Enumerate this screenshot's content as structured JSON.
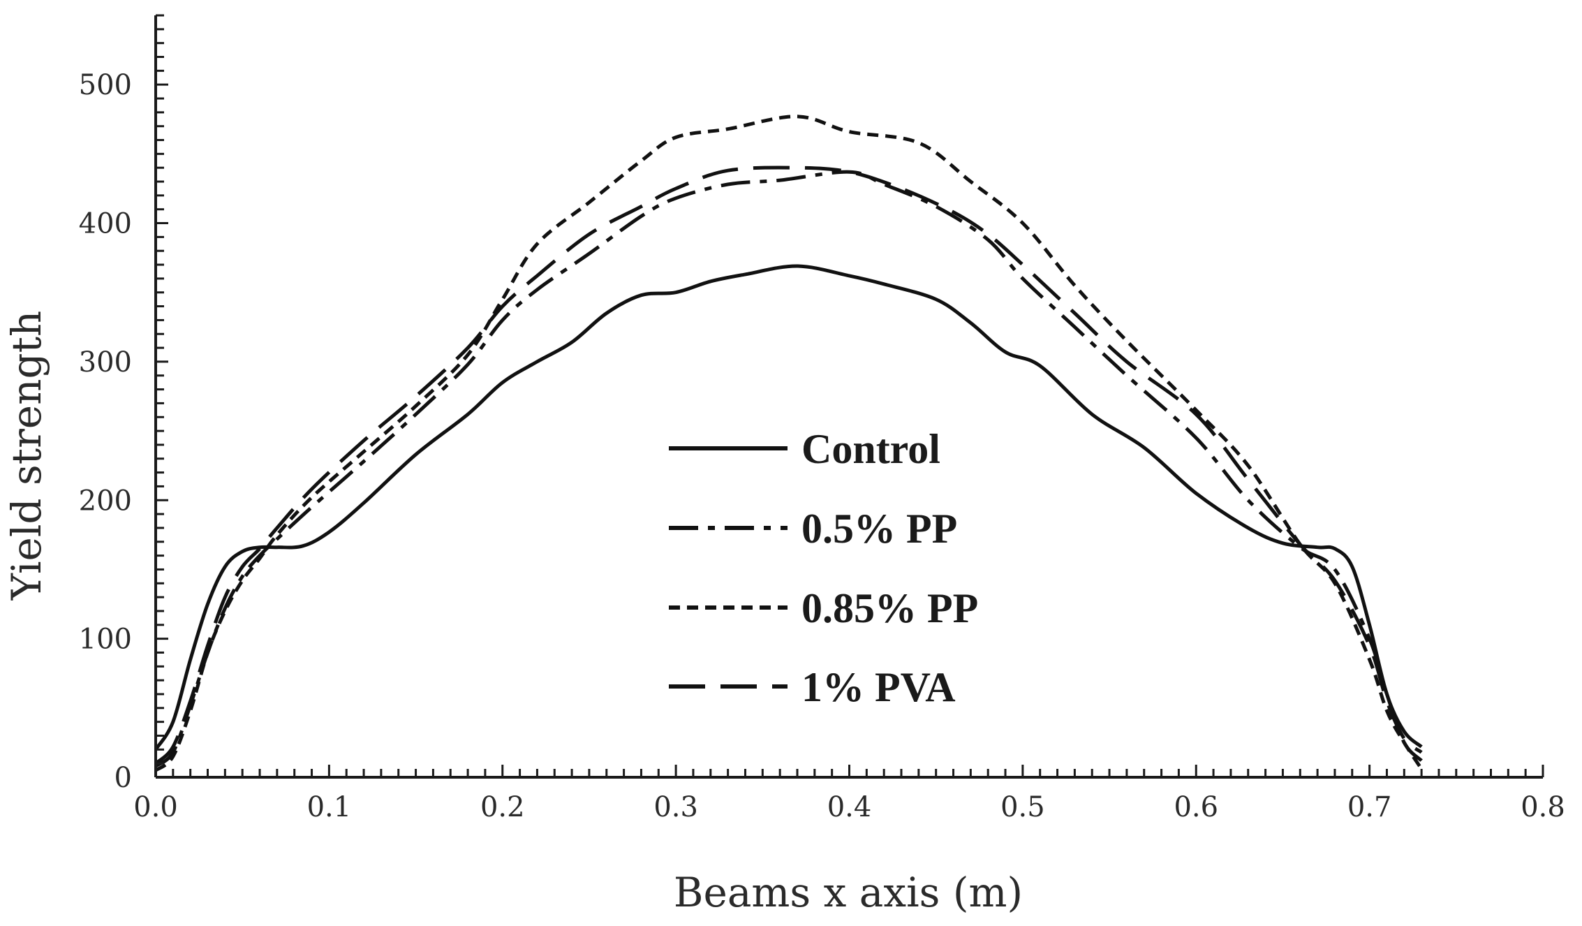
{
  "chart_data": {
    "type": "line",
    "title": "",
    "xlabel": "Beams x axis (m)",
    "ylabel": "Yield strength",
    "xlim": [
      0.0,
      0.8
    ],
    "ylim": [
      0,
      550
    ],
    "x_ticks": [
      0.0,
      0.1,
      0.2,
      0.3,
      0.4,
      0.5,
      0.6,
      0.7,
      0.8
    ],
    "x_tick_labels": [
      "0.0",
      "0.1",
      "0.2",
      "0.3",
      "0.4",
      "0.5",
      "0.6",
      "0.7",
      "0.8"
    ],
    "y_ticks": [
      0,
      100,
      200,
      300,
      400,
      500
    ],
    "y_tick_labels": [
      "0",
      "100",
      "200",
      "300",
      "400",
      "500"
    ],
    "grid": false,
    "legend_position": "center",
    "series": [
      {
        "name": "Control",
        "style": "solid",
        "points": [
          [
            0.0,
            20
          ],
          [
            0.01,
            40
          ],
          [
            0.02,
            85
          ],
          [
            0.03,
            125
          ],
          [
            0.04,
            152
          ],
          [
            0.05,
            163
          ],
          [
            0.06,
            166
          ],
          [
            0.07,
            166
          ],
          [
            0.085,
            167
          ],
          [
            0.1,
            177
          ],
          [
            0.12,
            198
          ],
          [
            0.15,
            233
          ],
          [
            0.18,
            262
          ],
          [
            0.2,
            285
          ],
          [
            0.22,
            300
          ],
          [
            0.24,
            314
          ],
          [
            0.26,
            335
          ],
          [
            0.28,
            348
          ],
          [
            0.3,
            350
          ],
          [
            0.32,
            358
          ],
          [
            0.34,
            363
          ],
          [
            0.37,
            369
          ],
          [
            0.4,
            362
          ],
          [
            0.42,
            356
          ],
          [
            0.45,
            345
          ],
          [
            0.47,
            328
          ],
          [
            0.49,
            307
          ],
          [
            0.51,
            297
          ],
          [
            0.54,
            262
          ],
          [
            0.57,
            238
          ],
          [
            0.6,
            205
          ],
          [
            0.63,
            180
          ],
          [
            0.65,
            169
          ],
          [
            0.67,
            166
          ],
          [
            0.68,
            165
          ],
          [
            0.69,
            152
          ],
          [
            0.7,
            110
          ],
          [
            0.71,
            60
          ],
          [
            0.72,
            33
          ],
          [
            0.73,
            22
          ]
        ]
      },
      {
        "name": "0.5% PP",
        "style": "dashdot",
        "points": [
          [
            0.0,
            8
          ],
          [
            0.01,
            18
          ],
          [
            0.02,
            52
          ],
          [
            0.03,
            90
          ],
          [
            0.04,
            122
          ],
          [
            0.05,
            145
          ],
          [
            0.06,
            160
          ],
          [
            0.07,
            172
          ],
          [
            0.09,
            195
          ],
          [
            0.12,
            228
          ],
          [
            0.15,
            262
          ],
          [
            0.18,
            298
          ],
          [
            0.2,
            330
          ],
          [
            0.22,
            352
          ],
          [
            0.25,
            378
          ],
          [
            0.28,
            405
          ],
          [
            0.3,
            418
          ],
          [
            0.33,
            428
          ],
          [
            0.36,
            431
          ],
          [
            0.4,
            437
          ],
          [
            0.42,
            428
          ],
          [
            0.45,
            412
          ],
          [
            0.48,
            388
          ],
          [
            0.5,
            360
          ],
          [
            0.53,
            325
          ],
          [
            0.56,
            290
          ],
          [
            0.6,
            245
          ],
          [
            0.63,
            200
          ],
          [
            0.66,
            166
          ],
          [
            0.68,
            150
          ],
          [
            0.7,
            100
          ],
          [
            0.71,
            60
          ],
          [
            0.72,
            25
          ],
          [
            0.73,
            12
          ]
        ]
      },
      {
        "name": "0.85% PP",
        "style": "dotted",
        "points": [
          [
            0.0,
            5
          ],
          [
            0.01,
            15
          ],
          [
            0.02,
            48
          ],
          [
            0.03,
            90
          ],
          [
            0.04,
            120
          ],
          [
            0.05,
            142
          ],
          [
            0.06,
            158
          ],
          [
            0.07,
            175
          ],
          [
            0.09,
            202
          ],
          [
            0.12,
            235
          ],
          [
            0.15,
            268
          ],
          [
            0.18,
            305
          ],
          [
            0.2,
            345
          ],
          [
            0.22,
            385
          ],
          [
            0.25,
            415
          ],
          [
            0.28,
            445
          ],
          [
            0.3,
            462
          ],
          [
            0.33,
            468
          ],
          [
            0.37,
            477
          ],
          [
            0.4,
            466
          ],
          [
            0.44,
            458
          ],
          [
            0.47,
            430
          ],
          [
            0.5,
            400
          ],
          [
            0.53,
            355
          ],
          [
            0.56,
            315
          ],
          [
            0.6,
            265
          ],
          [
            0.63,
            225
          ],
          [
            0.66,
            168
          ],
          [
            0.68,
            140
          ],
          [
            0.7,
            85
          ],
          [
            0.71,
            48
          ],
          [
            0.72,
            25
          ],
          [
            0.73,
            6
          ]
        ]
      },
      {
        "name": "1% PVA",
        "style": "longdash",
        "points": [
          [
            0.0,
            10
          ],
          [
            0.01,
            22
          ],
          [
            0.02,
            55
          ],
          [
            0.03,
            95
          ],
          [
            0.04,
            130
          ],
          [
            0.05,
            152
          ],
          [
            0.06,
            165
          ],
          [
            0.07,
            180
          ],
          [
            0.09,
            208
          ],
          [
            0.12,
            243
          ],
          [
            0.15,
            275
          ],
          [
            0.18,
            310
          ],
          [
            0.2,
            340
          ],
          [
            0.22,
            362
          ],
          [
            0.25,
            392
          ],
          [
            0.28,
            412
          ],
          [
            0.3,
            425
          ],
          [
            0.33,
            438
          ],
          [
            0.37,
            440
          ],
          [
            0.4,
            437
          ],
          [
            0.43,
            425
          ],
          [
            0.46,
            408
          ],
          [
            0.48,
            392
          ],
          [
            0.5,
            370
          ],
          [
            0.53,
            335
          ],
          [
            0.56,
            300
          ],
          [
            0.6,
            262
          ],
          [
            0.63,
            215
          ],
          [
            0.66,
            168
          ],
          [
            0.68,
            142
          ],
          [
            0.7,
            95
          ],
          [
            0.71,
            55
          ],
          [
            0.72,
            28
          ],
          [
            0.73,
            18
          ]
        ]
      }
    ]
  }
}
